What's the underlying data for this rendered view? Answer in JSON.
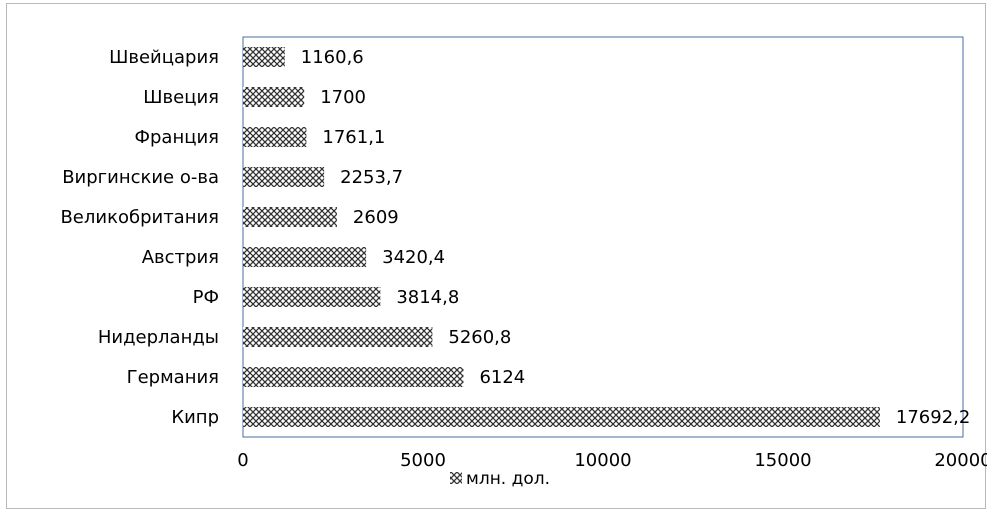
{
  "chart_data": {
    "type": "bar",
    "orientation": "horizontal",
    "categories": [
      "Кипр",
      "Германия",
      "Нидерланды",
      "РФ",
      "Австрия",
      "Великобритания",
      "Виргинские о-ва",
      "Франция",
      "Швеция",
      "Швейцария"
    ],
    "values": [
      17692.2,
      6124,
      5260.8,
      3814.8,
      3420.4,
      2609,
      2253.7,
      1761.1,
      1700,
      1160.6
    ],
    "value_labels": [
      "17692,2",
      "6124",
      "5260,8",
      "3814,8",
      "3420,4",
      "2609",
      "2253,7",
      "1761,1",
      "1700",
      "1160,6"
    ],
    "series": [
      {
        "name": "млн. дол.",
        "values": [
          17692.2,
          6124,
          5260.8,
          3814.8,
          3420.4,
          2609,
          2253.7,
          1761.1,
          1700,
          1160.6
        ]
      }
    ],
    "xlim": [
      0,
      20000
    ],
    "xticks": [
      0,
      5000,
      10000,
      15000,
      20000
    ],
    "xtick_labels": [
      "0",
      "5000",
      "10000",
      "15000",
      "20000"
    ],
    "grid": false,
    "legend_position": "bottom",
    "bar_pattern": "crosshatch",
    "colors": {
      "bar_pattern_dark": "#333333",
      "bar_pattern_light": "#ffffff",
      "plot_border": "#4a6fa5",
      "frame_border": "#b8b8b8"
    }
  }
}
